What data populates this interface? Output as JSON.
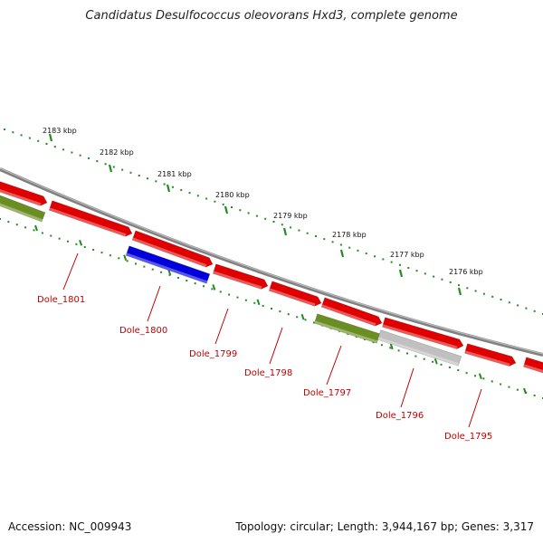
{
  "title": "Candidatus Desulfococcus oleovorans Hxd3, complete genome",
  "footer": {
    "accession": "Accession: NC_009943",
    "summary": "Topology: circular; Length: 3,944,167 bp; Genes: 3,317"
  },
  "ticks": [
    "2183 kbp",
    "2182 kbp",
    "2181 kbp",
    "2180 kbp",
    "2179 kbp",
    "2178 kbp",
    "2177 kbp",
    "2176 kbp"
  ],
  "genes": [
    {
      "name": "Dole_1801",
      "color": "#e00000",
      "track": "forward"
    },
    {
      "name": "Dole_1800",
      "color": "#0000dd",
      "track": "inner"
    },
    {
      "name": "Dole_1799",
      "color": "#e00000",
      "track": "forward"
    },
    {
      "name": "Dole_1798",
      "color": "#e00000",
      "track": "forward"
    },
    {
      "name": "Dole_1797",
      "color": "#6b8e23",
      "track": "inner"
    },
    {
      "name": "Dole_1796",
      "color": "#c0c0c0",
      "track": "inner"
    },
    {
      "name": "Dole_1795",
      "color": "#e00000",
      "track": "forward"
    }
  ],
  "colors": {
    "backbone": "#808080",
    "cds_forward": "#e00000",
    "cds_inner": "#6b8e23",
    "scale": "#228b22",
    "label": "#c00000"
  }
}
